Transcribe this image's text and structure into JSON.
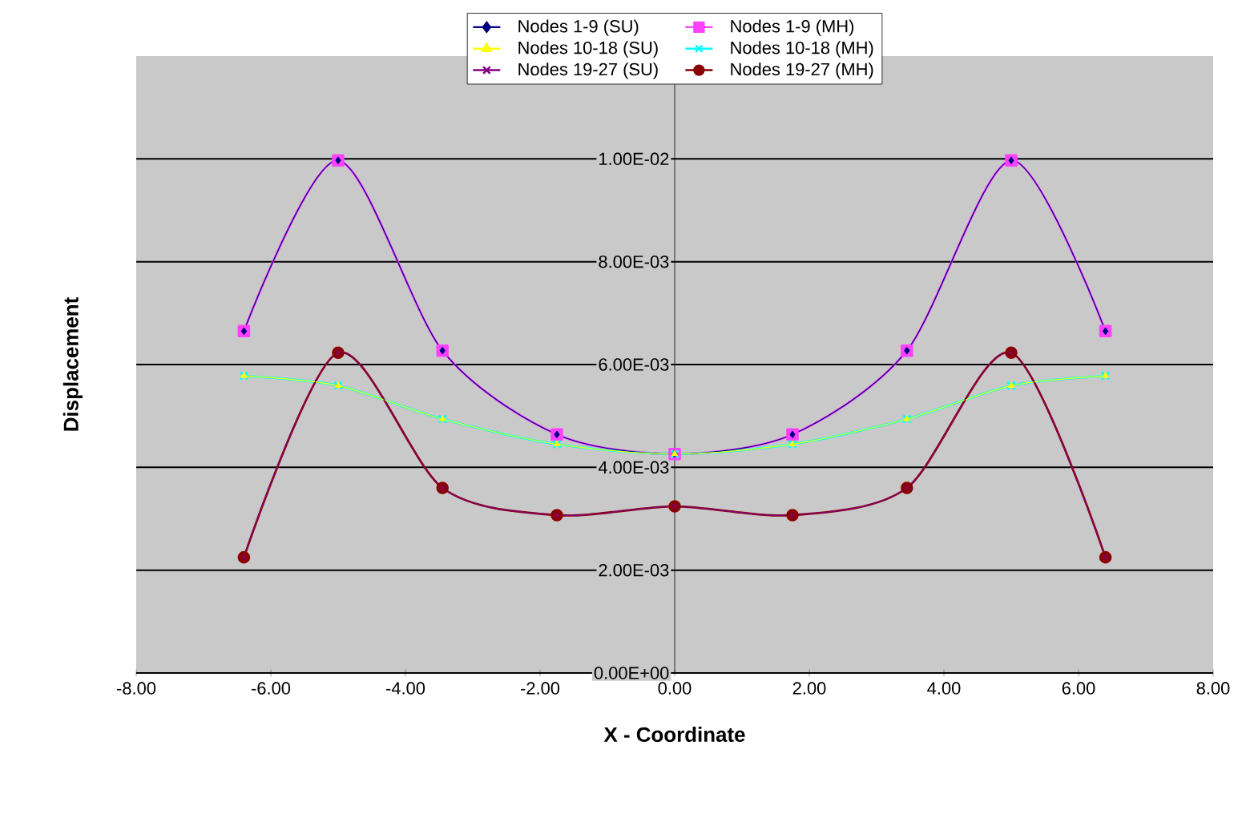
{
  "chart_data": {
    "type": "line",
    "xlabel": "X - Coordinate",
    "ylabel": "Displacement",
    "x": [
      -6.4,
      -5.0,
      -3.45,
      -1.75,
      0,
      1.75,
      3.45,
      5.0,
      6.4
    ],
    "series": [
      {
        "name": "Nodes 1-9 (SU)",
        "color": "#000080",
        "marker": "diamond",
        "values": [
          0.00665,
          0.00997,
          0.00627,
          0.00464,
          0.00426,
          0.00464,
          0.00627,
          0.00997,
          0.00665
        ]
      },
      {
        "name": "Nodes 10-18 (SU)",
        "color": "#ffff00",
        "marker": "triangle",
        "values": [
          0.00578,
          0.00559,
          0.00494,
          0.00445,
          0.00426,
          0.00445,
          0.00494,
          0.00559,
          0.00578
        ]
      },
      {
        "name": "Nodes 19-27 (SU)",
        "color": "#800080",
        "marker": "cross",
        "values": [
          0.00225,
          0.00623,
          0.0036,
          0.00307,
          0.00324,
          0.00307,
          0.0036,
          0.00623,
          0.00225
        ]
      },
      {
        "name": "Nodes 1-9 (MH)",
        "color": "#ff40ff",
        "marker": "square",
        "values": [
          0.00665,
          0.00997,
          0.00627,
          0.00464,
          0.00426,
          0.00464,
          0.00627,
          0.00997,
          0.00665
        ]
      },
      {
        "name": "Nodes 10-18 (MH)",
        "color": "#00ffff",
        "marker": "cross",
        "values": [
          0.00578,
          0.00559,
          0.00494,
          0.00445,
          0.00426,
          0.00445,
          0.00494,
          0.00559,
          0.00578
        ]
      },
      {
        "name": "Nodes 19-27 (MH)",
        "color": "#8b0000",
        "marker": "circle",
        "values": [
          0.00225,
          0.00623,
          0.0036,
          0.00307,
          0.00324,
          0.00307,
          0.0036,
          0.00623,
          0.00225
        ]
      }
    ],
    "xlim": [
      -8,
      8
    ],
    "xticks": [
      {
        "value": -8,
        "label": "-8.00"
      },
      {
        "value": -6,
        "label": "-6.00"
      },
      {
        "value": -4,
        "label": "-4.00"
      },
      {
        "value": -2,
        "label": "-2.00"
      },
      {
        "value": 0,
        "label": "0.00"
      },
      {
        "value": 2,
        "label": "2.00"
      },
      {
        "value": 4,
        "label": "4.00"
      },
      {
        "value": 6,
        "label": "6.00"
      },
      {
        "value": 8,
        "label": "8.00"
      }
    ],
    "ylim": [
      0,
      0.012
    ],
    "yticks": [
      {
        "value": 0,
        "label": "0.00E+00"
      },
      {
        "value": 0.002,
        "label": "2.00E-03"
      },
      {
        "value": 0.004,
        "label": "4.00E-03"
      },
      {
        "value": 0.006,
        "label": "6.00E-03"
      },
      {
        "value": 0.008,
        "label": "8.00E-03"
      },
      {
        "value": 0.01,
        "label": "1.00E-02"
      }
    ],
    "grid": "y",
    "legend": "top",
    "line_style": "solid"
  }
}
